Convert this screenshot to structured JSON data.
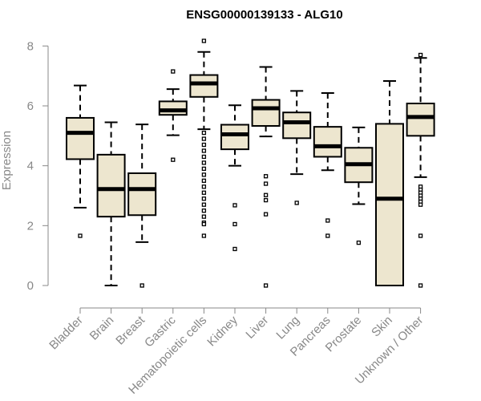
{
  "chart_data": {
    "type": "boxplot",
    "title": "ENSG00000139133 - ALG10",
    "xlabel": "",
    "ylabel": "Expression",
    "ylim": [
      0,
      8.25
    ],
    "yticks": [
      0,
      2,
      4,
      6,
      8
    ],
    "grid": false,
    "legend": "none",
    "colors": {
      "box_fill": "#ede6cf",
      "stroke": "#000000",
      "axis": "#888888",
      "title": "#000000"
    },
    "categories": [
      "Bladder",
      "Brain",
      "Breast",
      "Gastric",
      "Hematopoietic cells",
      "Kidney",
      "Liver",
      "Lung",
      "Pancreas",
      "Prostate",
      "Skin",
      "Unknown / Other"
    ],
    "boxes": [
      {
        "q1": 4.22,
        "median": 5.1,
        "q3": 5.6,
        "whisker_low": 2.6,
        "whisker_high": 6.68,
        "outliers": [
          1.66
        ]
      },
      {
        "q1": 2.3,
        "median": 3.22,
        "q3": 4.37,
        "whisker_low": 0.0,
        "whisker_high": 5.45,
        "outliers": []
      },
      {
        "q1": 2.35,
        "median": 3.22,
        "q3": 3.75,
        "whisker_low": 1.45,
        "whisker_high": 5.38,
        "outliers": [
          0.0
        ]
      },
      {
        "q1": 5.7,
        "median": 5.85,
        "q3": 6.15,
        "whisker_low": 5.02,
        "whisker_high": 6.56,
        "outliers": [
          7.15,
          4.2
        ]
      },
      {
        "q1": 6.3,
        "median": 6.75,
        "q3": 7.03,
        "whisker_low": 5.22,
        "whisker_high": 7.8,
        "outliers": [
          8.17,
          5.1,
          4.9,
          4.7,
          4.5,
          4.3,
          4.1,
          3.9,
          3.7,
          3.5,
          3.3,
          3.1,
          2.9,
          2.7,
          2.5,
          2.3,
          2.1,
          2.05,
          1.66
        ]
      },
      {
        "q1": 4.55,
        "median": 5.05,
        "q3": 5.37,
        "whisker_low": 4.0,
        "whisker_high": 6.02,
        "outliers": [
          2.68,
          2.05,
          1.22
        ]
      },
      {
        "q1": 5.33,
        "median": 5.92,
        "q3": 6.2,
        "whisker_low": 4.98,
        "whisker_high": 7.3,
        "outliers": [
          3.65,
          3.4,
          3.02,
          2.85,
          2.38,
          0.0
        ]
      },
      {
        "q1": 4.92,
        "median": 5.45,
        "q3": 5.78,
        "whisker_low": 3.72,
        "whisker_high": 6.5,
        "outliers": [
          2.76
        ]
      },
      {
        "q1": 4.3,
        "median": 4.65,
        "q3": 5.3,
        "whisker_low": 3.85,
        "whisker_high": 6.43,
        "outliers": [
          2.17,
          1.66
        ]
      },
      {
        "q1": 3.45,
        "median": 4.05,
        "q3": 4.6,
        "whisker_low": 2.72,
        "whisker_high": 5.28,
        "outliers": [
          1.43
        ]
      },
      {
        "q1": 0.0,
        "median": 2.9,
        "q3": 5.4,
        "whisker_low": 0.0,
        "whisker_high": 6.83,
        "outliers": []
      },
      {
        "q1": 5.0,
        "median": 5.63,
        "q3": 6.08,
        "whisker_low": 3.62,
        "whisker_high": 7.6,
        "outliers": [
          7.7,
          3.3,
          3.2,
          3.1,
          3.0,
          2.9,
          2.8,
          2.7,
          1.66,
          0.0
        ]
      }
    ]
  }
}
